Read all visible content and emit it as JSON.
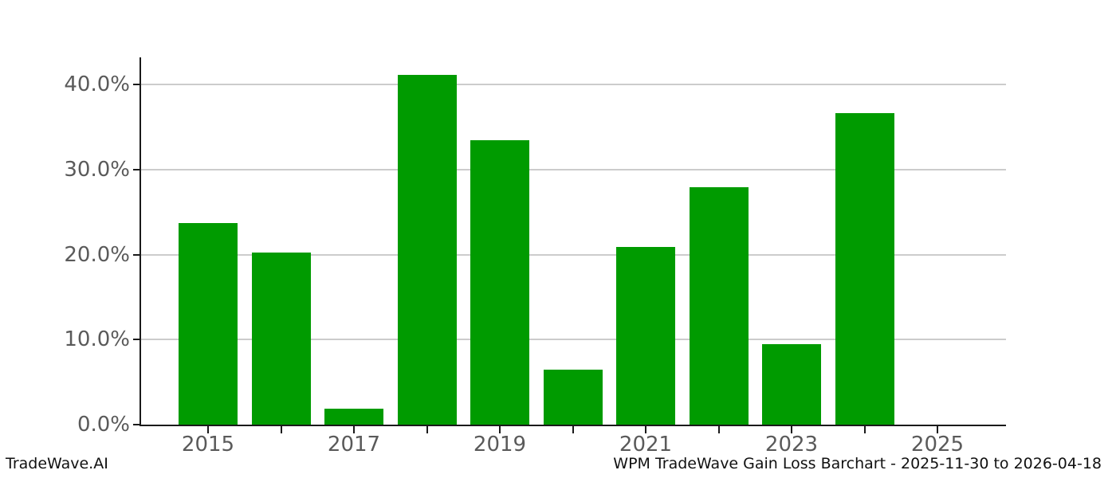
{
  "chart_data": {
    "type": "bar",
    "title": "",
    "xlabel": "",
    "ylabel": "",
    "categories": [
      "2015",
      "2016",
      "2017",
      "2018",
      "2019",
      "2020",
      "2021",
      "2022",
      "2023",
      "2024",
      "2025"
    ],
    "values": [
      23.7,
      20.2,
      1.9,
      41.1,
      33.4,
      6.5,
      20.9,
      27.9,
      9.5,
      36.6,
      0.0
    ],
    "unit": "%",
    "bar_color": "#009b00",
    "ylim": [
      0,
      43.2
    ],
    "yticks": [
      0,
      10,
      20,
      30,
      40
    ],
    "ytick_labels": [
      "0.0%",
      "10.0%",
      "20.0%",
      "30.0%",
      "40.0%"
    ],
    "xtick_labeled_years": [
      "2015",
      "2017",
      "2019",
      "2021",
      "2023",
      "2025"
    ],
    "grid": "horizontal-only",
    "legend": "none",
    "gridline_color": "#cccccc",
    "tick_label_color": "#5a5a5a",
    "axis_color": "#1a1a1a",
    "background_color": "#ffffff"
  },
  "footer": {
    "brand": "TradeWave.AI",
    "caption": "WPM TradeWave Gain Loss Barchart - 2025-11-30 to 2026-04-18"
  }
}
